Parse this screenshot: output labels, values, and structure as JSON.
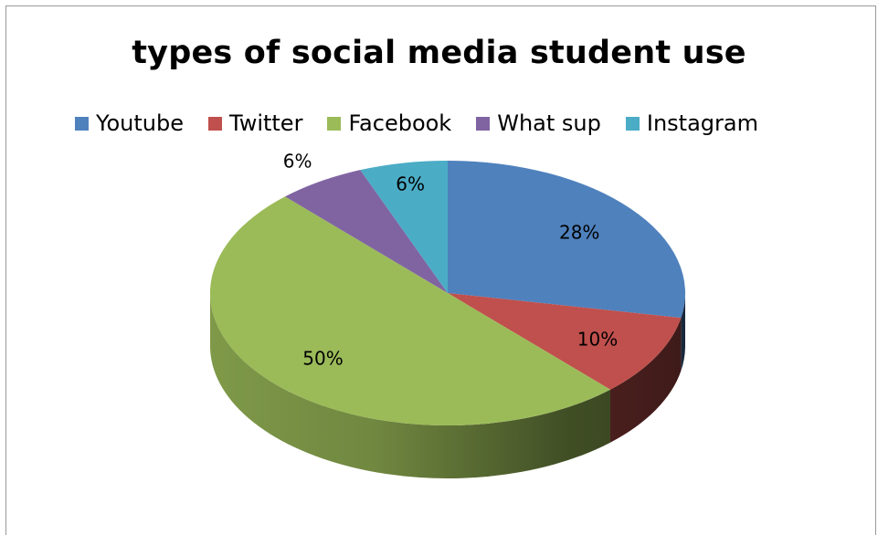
{
  "chart_data": {
    "type": "pie",
    "title": "types of social media student use",
    "legend_position": "top",
    "slices": [
      {
        "name": "Youtube",
        "value": 28,
        "label": "28%",
        "color": "#4F81BD"
      },
      {
        "name": "Twitter",
        "value": 10,
        "label": "10%",
        "color": "#C0504D"
      },
      {
        "name": "Facebook",
        "value": 50,
        "label": "50%",
        "color": "#9BBB59"
      },
      {
        "name": "What sup",
        "value": 6,
        "label": "6%",
        "color": "#8064A2"
      },
      {
        "name": "Instagram",
        "value": 6,
        "label": "6%",
        "color": "#4BACC6"
      }
    ],
    "style": "3d"
  }
}
